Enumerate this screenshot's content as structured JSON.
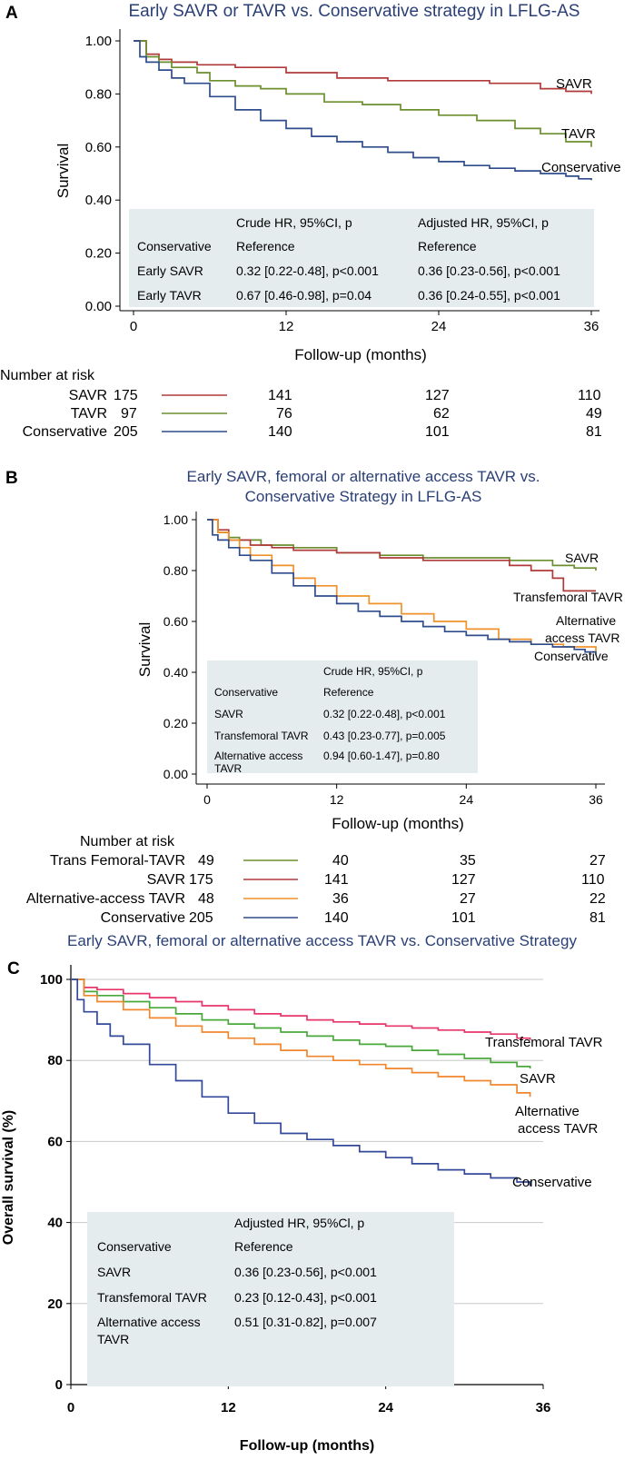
{
  "colors": {
    "title": "#2a3f75",
    "savr": "#b03a3a",
    "tavr": "#6b8f2f",
    "conservative": "#2f4d8c",
    "alt_access": "#f0922a",
    "c_transfemoral": "#e8356a",
    "c_savr": "#49a83a",
    "c_alt": "#f0862e",
    "c_conservative": "#33489a",
    "box": "#e5ecee",
    "grid": "#c8c8c8"
  },
  "chart_data": [
    {
      "panel": "A",
      "type": "line",
      "title": "Early SAVR or TAVR vs. Conservative strategy in LFLG-AS",
      "xlabel": "Follow-up (months)",
      "ylabel": "Survival",
      "xlim": [
        0,
        36
      ],
      "ylim": [
        0,
        1
      ],
      "xticks": [
        "0",
        "12",
        "24",
        "36"
      ],
      "yticks": [
        "0.00",
        "0.20",
        "0.40",
        "0.60",
        "0.80",
        "1.00"
      ],
      "grid": false,
      "series": [
        {
          "name": "SAVR",
          "color": "#b03a3a",
          "x": [
            0,
            1,
            2,
            3,
            5,
            8,
            12,
            16,
            20,
            24,
            28,
            32,
            34,
            36
          ],
          "y": [
            1.0,
            0.95,
            0.93,
            0.92,
            0.91,
            0.9,
            0.88,
            0.86,
            0.85,
            0.85,
            0.84,
            0.82,
            0.81,
            0.8
          ]
        },
        {
          "name": "TAVR",
          "color": "#6b8f2f",
          "x": [
            0,
            1,
            2,
            3,
            5,
            6,
            8,
            10,
            12,
            15,
            18,
            21,
            24,
            27,
            30,
            32,
            34,
            36
          ],
          "y": [
            1.0,
            0.94,
            0.92,
            0.9,
            0.88,
            0.85,
            0.83,
            0.82,
            0.8,
            0.77,
            0.76,
            0.74,
            0.72,
            0.7,
            0.67,
            0.65,
            0.62,
            0.6
          ]
        },
        {
          "name": "Conservative",
          "color": "#2f4d8c",
          "x": [
            0,
            0.5,
            1,
            2,
            3,
            4,
            6,
            8,
            10,
            12,
            14,
            16,
            18,
            20,
            22,
            24,
            26,
            28,
            30,
            32,
            34,
            35,
            36
          ],
          "y": [
            1.0,
            0.94,
            0.92,
            0.89,
            0.86,
            0.84,
            0.79,
            0.74,
            0.7,
            0.67,
            0.64,
            0.62,
            0.6,
            0.58,
            0.56,
            0.545,
            0.53,
            0.52,
            0.51,
            0.5,
            0.49,
            0.48,
            0.475
          ]
        }
      ],
      "labels": [
        "SAVR",
        "TAVR",
        "Conservative"
      ],
      "table": {
        "headers": [
          "",
          "Crude HR, 95%CI, p",
          "Adjusted HR, 95%CI, p"
        ],
        "rows": [
          [
            "Conservative",
            "Reference",
            "Reference"
          ],
          [
            "Early SAVR",
            "0.32 [0.22-0.48], p<0.001",
            "0.36 [0.23-0.56], p<0.001"
          ],
          [
            "Early TAVR",
            "0.67 [0.46-0.98], p=0.04",
            "0.36 [0.24-0.55], p<0.001"
          ]
        ]
      },
      "risk_table": {
        "title": "Number at risk",
        "rows": [
          {
            "label": "SAVR",
            "color": "#b03a3a",
            "values": [
              "175",
              "141",
              "127",
              "110"
            ]
          },
          {
            "label": "TAVR",
            "color": "#6b8f2f",
            "values": [
              "97",
              "76",
              "62",
              "49"
            ]
          },
          {
            "label": "Conservative",
            "color": "#2f4d8c",
            "values": [
              "205",
              "140",
              "101",
              "81"
            ]
          }
        ]
      }
    },
    {
      "panel": "B",
      "type": "line",
      "title": "Early SAVR, femoral or alternative access  TAVR vs. Conservative Strategy in LFLG-AS",
      "title_lines": [
        "Early SAVR, femoral or alternative access  TAVR vs.",
        "Conservative Strategy in LFLG-AS"
      ],
      "xlabel": "Follow-up (months)",
      "ylabel": "Survival",
      "xlim": [
        0,
        36
      ],
      "ylim": [
        0,
        1
      ],
      "xticks": [
        "0",
        "12",
        "24",
        "36"
      ],
      "yticks": [
        "0.00",
        "0.20",
        "0.40",
        "0.60",
        "0.80",
        "1.00"
      ],
      "grid": false,
      "series": [
        {
          "name": "SAVR",
          "color": "#6b8f2f",
          "x": [
            0,
            1,
            2,
            3,
            5,
            8,
            12,
            16,
            20,
            24,
            28,
            32,
            34,
            36
          ],
          "y": [
            1.0,
            0.95,
            0.93,
            0.92,
            0.9,
            0.89,
            0.87,
            0.86,
            0.85,
            0.85,
            0.84,
            0.82,
            0.81,
            0.8
          ]
        },
        {
          "name": "Transfemoral TAVR",
          "color": "#b03a3a",
          "x": [
            0,
            1,
            2,
            4,
            6,
            8,
            12,
            16,
            20,
            24,
            28,
            30,
            32,
            33,
            36
          ],
          "y": [
            1.0,
            0.96,
            0.92,
            0.9,
            0.89,
            0.88,
            0.87,
            0.85,
            0.84,
            0.84,
            0.82,
            0.8,
            0.77,
            0.72,
            0.72
          ]
        },
        {
          "name": "Alternative access TAVR",
          "color": "#f0922a",
          "x": [
            0,
            1,
            2,
            3,
            4,
            6,
            8,
            10,
            12,
            15,
            18,
            21,
            24,
            27,
            30,
            33,
            36
          ],
          "y": [
            1.0,
            0.95,
            0.92,
            0.89,
            0.86,
            0.82,
            0.77,
            0.74,
            0.7,
            0.67,
            0.63,
            0.6,
            0.57,
            0.53,
            0.51,
            0.5,
            0.48
          ]
        },
        {
          "name": "Conservative",
          "color": "#2f4d8c",
          "x": [
            0,
            0.5,
            1,
            2,
            3,
            4,
            6,
            8,
            10,
            12,
            14,
            16,
            18,
            20,
            22,
            24,
            26,
            28,
            30,
            32,
            34,
            35,
            36
          ],
          "y": [
            1.0,
            0.94,
            0.92,
            0.89,
            0.86,
            0.84,
            0.79,
            0.74,
            0.7,
            0.67,
            0.64,
            0.62,
            0.6,
            0.58,
            0.56,
            0.545,
            0.53,
            0.52,
            0.51,
            0.5,
            0.49,
            0.48,
            0.47
          ]
        }
      ],
      "labels": [
        "SAVR",
        "Transfemoral TAVR",
        "Alternative",
        "access TAVR",
        "Conservative"
      ],
      "table": {
        "headers": [
          "",
          "Crude HR, 95%CI, p"
        ],
        "rows": [
          [
            "Conservative",
            "Reference"
          ],
          [
            "SAVR",
            "0.32 [0.22-0.48], p<0.001"
          ],
          [
            "Transfemoral TAVR",
            "0.43 [0.23-0.77], p=0.005"
          ],
          [
            "Alternative access TAVR",
            "0.94 [0.60-1.47], p=0.80"
          ]
        ],
        "alt_label_lines": [
          "Alternative access",
          "TAVR"
        ]
      },
      "risk_table": {
        "title": "Number at risk",
        "rows": [
          {
            "label": "Trans Femoral-TAVR",
            "color": "#6b8f2f",
            "values": [
              "49",
              "40",
              "35",
              "27"
            ]
          },
          {
            "label": "SAVR",
            "color": "#b03a3a",
            "values": [
              "175",
              "141",
              "127",
              "110"
            ]
          },
          {
            "label": "Alternative-access TAVR",
            "color": "#f0922a",
            "values": [
              "48",
              "36",
              "27",
              "22"
            ]
          },
          {
            "label": "Conservative",
            "color": "#2f4d8c",
            "values": [
              "205",
              "140",
              "101",
              "81"
            ]
          }
        ]
      }
    },
    {
      "panel": "C",
      "type": "line",
      "title": "Early SAVR, femoral or alternative access TAVR vs. Conservative Strategy",
      "xlabel": "Follow-up (months)",
      "ylabel": "Overall survival (%)",
      "xlim": [
        0,
        36
      ],
      "ylim": [
        0,
        100
      ],
      "xticks": [
        "0",
        "12",
        "24",
        "36"
      ],
      "yticks": [
        "0",
        "20",
        "40",
        "60",
        "80",
        "100"
      ],
      "grid": true,
      "series": [
        {
          "name": "Transfemoral TAVR",
          "color": "#e8356a",
          "x": [
            0,
            1,
            2,
            4,
            6,
            8,
            10,
            12,
            14,
            16,
            18,
            20,
            22,
            24,
            26,
            28,
            30,
            32,
            34,
            35
          ],
          "y": [
            100,
            98,
            97.5,
            96.5,
            95.5,
            94.5,
            93.5,
            92.5,
            91.5,
            91,
            90,
            89.5,
            89,
            88.5,
            88,
            87.5,
            87,
            86.5,
            85.5,
            85
          ]
        },
        {
          "name": "SAVR",
          "color": "#49a83a",
          "x": [
            0,
            1,
            2,
            4,
            6,
            8,
            10,
            12,
            14,
            16,
            18,
            20,
            22,
            24,
            26,
            28,
            30,
            32,
            34,
            35
          ],
          "y": [
            100,
            97,
            96,
            94.5,
            93,
            91.5,
            90,
            89,
            88,
            87,
            86,
            85,
            84,
            83.5,
            82.5,
            81.5,
            80.5,
            79.5,
            78.5,
            78
          ]
        },
        {
          "name": "Alternative access TAVR",
          "color": "#f0862e",
          "x": [
            0,
            1,
            2,
            4,
            6,
            8,
            10,
            12,
            14,
            16,
            18,
            20,
            22,
            24,
            26,
            28,
            30,
            32,
            34,
            35
          ],
          "y": [
            100,
            96,
            94.5,
            92.5,
            90.5,
            88.5,
            87,
            85.5,
            84,
            82.5,
            81,
            80,
            79,
            78,
            77,
            76,
            75,
            74,
            72,
            71
          ]
        },
        {
          "name": "Conservative",
          "color": "#33489a",
          "x": [
            0,
            0.5,
            1,
            2,
            3,
            4,
            6,
            8,
            10,
            12,
            14,
            16,
            18,
            20,
            22,
            24,
            26,
            28,
            30,
            32,
            34,
            35
          ],
          "y": [
            100,
            95,
            92,
            89,
            86,
            84,
            79,
            75,
            71,
            67,
            64.5,
            62,
            60.5,
            59,
            57.5,
            56,
            54.5,
            53,
            52,
            51,
            50,
            49
          ]
        }
      ],
      "labels": [
        "Transfemoral TAVR",
        "SAVR",
        "Alternative",
        "access TAVR",
        "Conservative"
      ],
      "table": {
        "headers": [
          "",
          "Adjusted HR, 95%Cl, p"
        ],
        "rows": [
          [
            "Conservative",
            "Reference"
          ],
          [
            "SAVR",
            "0.36 [0.23-0.56], p<0.001"
          ],
          [
            "Transfemoral TAVR",
            "0.23 [0.12-0.43], p<0.001"
          ],
          [
            "Alternative access TAVR",
            "0.51 [0.31-0.82], p=0.007"
          ]
        ],
        "alt_label_lines": [
          "Alternative access",
          "TAVR"
        ]
      }
    }
  ]
}
